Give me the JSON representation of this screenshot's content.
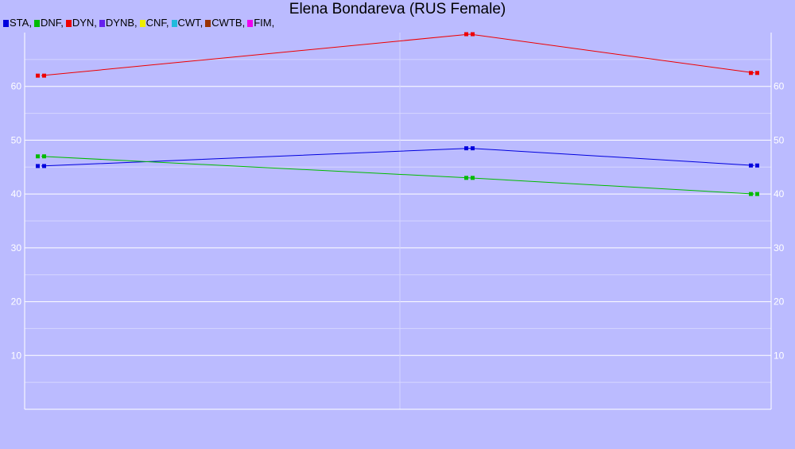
{
  "chart_data": {
    "type": "line",
    "title": "Elena Bondareva (RUS Female)",
    "xlabel": "",
    "ylabel": "",
    "x": [
      1,
      2,
      3
    ],
    "ylim": [
      0,
      70
    ],
    "yticks": [
      10,
      20,
      30,
      40,
      50,
      60
    ],
    "grid": true,
    "legend": [
      {
        "label": "STA,",
        "color": "#0000dd"
      },
      {
        "label": "DNF,",
        "color": "#00bb00"
      },
      {
        "label": "DYN,",
        "color": "#ee0000"
      },
      {
        "label": "DYNB,",
        "color": "#6622ee"
      },
      {
        "label": "CNF,",
        "color": "#eeee00"
      },
      {
        "label": "CWT,",
        "color": "#22bbdd"
      },
      {
        "label": "CWTB,",
        "color": "#993300"
      },
      {
        "label": "FIM,",
        "color": "#ee00ee"
      }
    ],
    "series": [
      {
        "name": "STA",
        "color": "#0000dd",
        "values": [
          45.2,
          48.5,
          45.3
        ]
      },
      {
        "name": "DNF",
        "color": "#00bb00",
        "values": [
          47.0,
          43.0,
          40.0
        ]
      },
      {
        "name": "DYN",
        "color": "#ee0000",
        "values": [
          62.0,
          69.7,
          62.5
        ]
      }
    ]
  }
}
